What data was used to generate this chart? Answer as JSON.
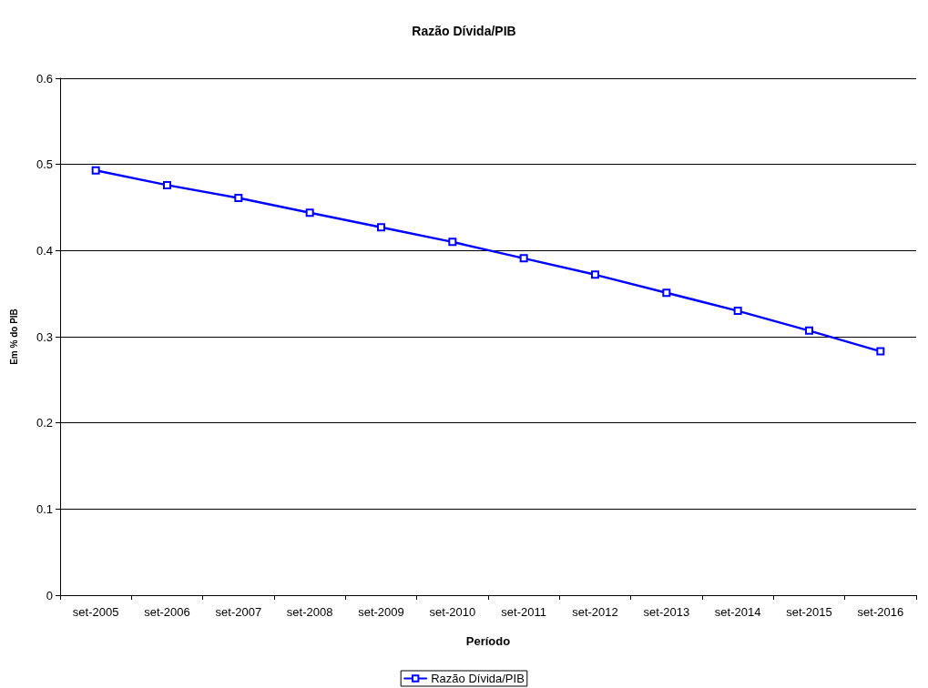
{
  "chart_data": {
    "type": "line",
    "title": "Razão Dívida/PIB",
    "xlabel": "Período",
    "ylabel": "Em % do PIB",
    "categories": [
      "set-2005",
      "set-2006",
      "set-2007",
      "set-2008",
      "set-2009",
      "set-2010",
      "set-2011",
      "set-2012",
      "set-2013",
      "set-2014",
      "set-2015",
      "set-2016"
    ],
    "series": [
      {
        "name": "Razão Dívida/PIB",
        "color": "#0000ff",
        "values": [
          0.493,
          0.476,
          0.461,
          0.444,
          0.427,
          0.41,
          0.391,
          0.372,
          0.351,
          0.33,
          0.307,
          0.283
        ]
      }
    ],
    "ylim": [
      0,
      0.6
    ],
    "yticks": [
      0,
      0.1,
      0.2,
      0.3,
      0.4,
      0.5,
      0.6
    ],
    "grid": "y",
    "legend": "bottom",
    "marker": "square",
    "line_style": "solid"
  }
}
